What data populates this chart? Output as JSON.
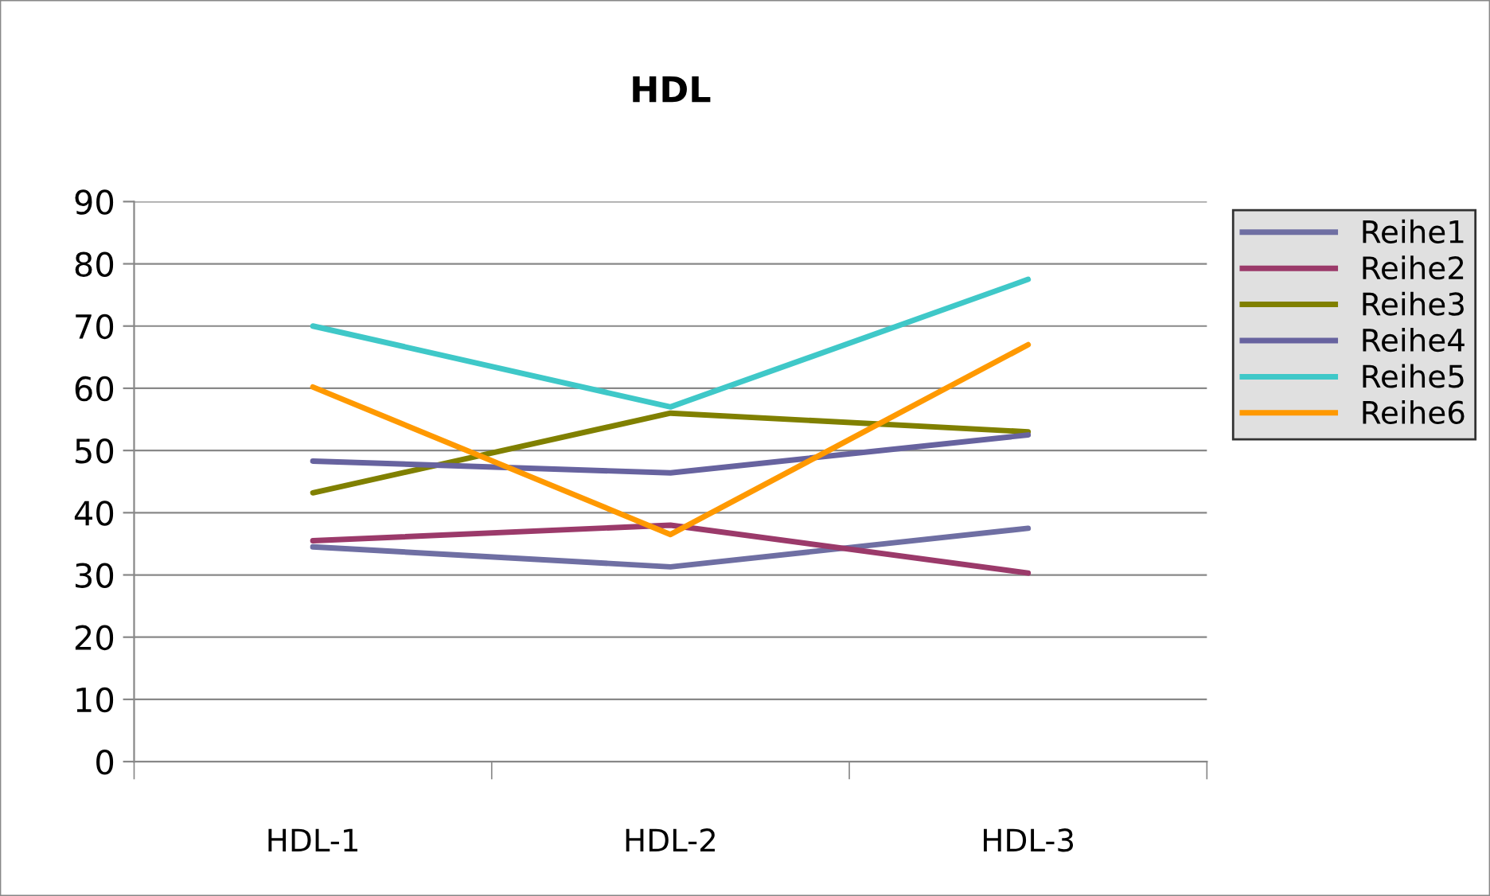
{
  "chart_data": {
    "type": "line",
    "title": "HDL",
    "categories": [
      "HDL-1",
      "HDL-2",
      "HDL-3"
    ],
    "series": [
      {
        "name": "Reihe1",
        "color": "#6f6fa3",
        "values": [
          34.5,
          31.3,
          37.5
        ]
      },
      {
        "name": "Reihe2",
        "color": "#9b3a6a",
        "values": [
          35.5,
          38,
          30.3
        ]
      },
      {
        "name": "Reihe3",
        "color": "#808000",
        "values": [
          43.2,
          56,
          53
        ]
      },
      {
        "name": "Reihe4",
        "color": "#67639f",
        "values": [
          48.3,
          46.4,
          52.5
        ]
      },
      {
        "name": "Reihe5",
        "color": "#3fc8c8",
        "values": [
          70,
          57,
          77.5
        ]
      },
      {
        "name": "Reihe6",
        "color": "#ff9900",
        "values": [
          60.2,
          36.5,
          67
        ]
      }
    ],
    "ylim": [
      0,
      90
    ],
    "yticks": [
      0,
      10,
      20,
      30,
      40,
      50,
      60,
      70,
      80,
      90
    ],
    "grid": "y",
    "legend": "right",
    "marker": "none",
    "line_style": "solid"
  }
}
